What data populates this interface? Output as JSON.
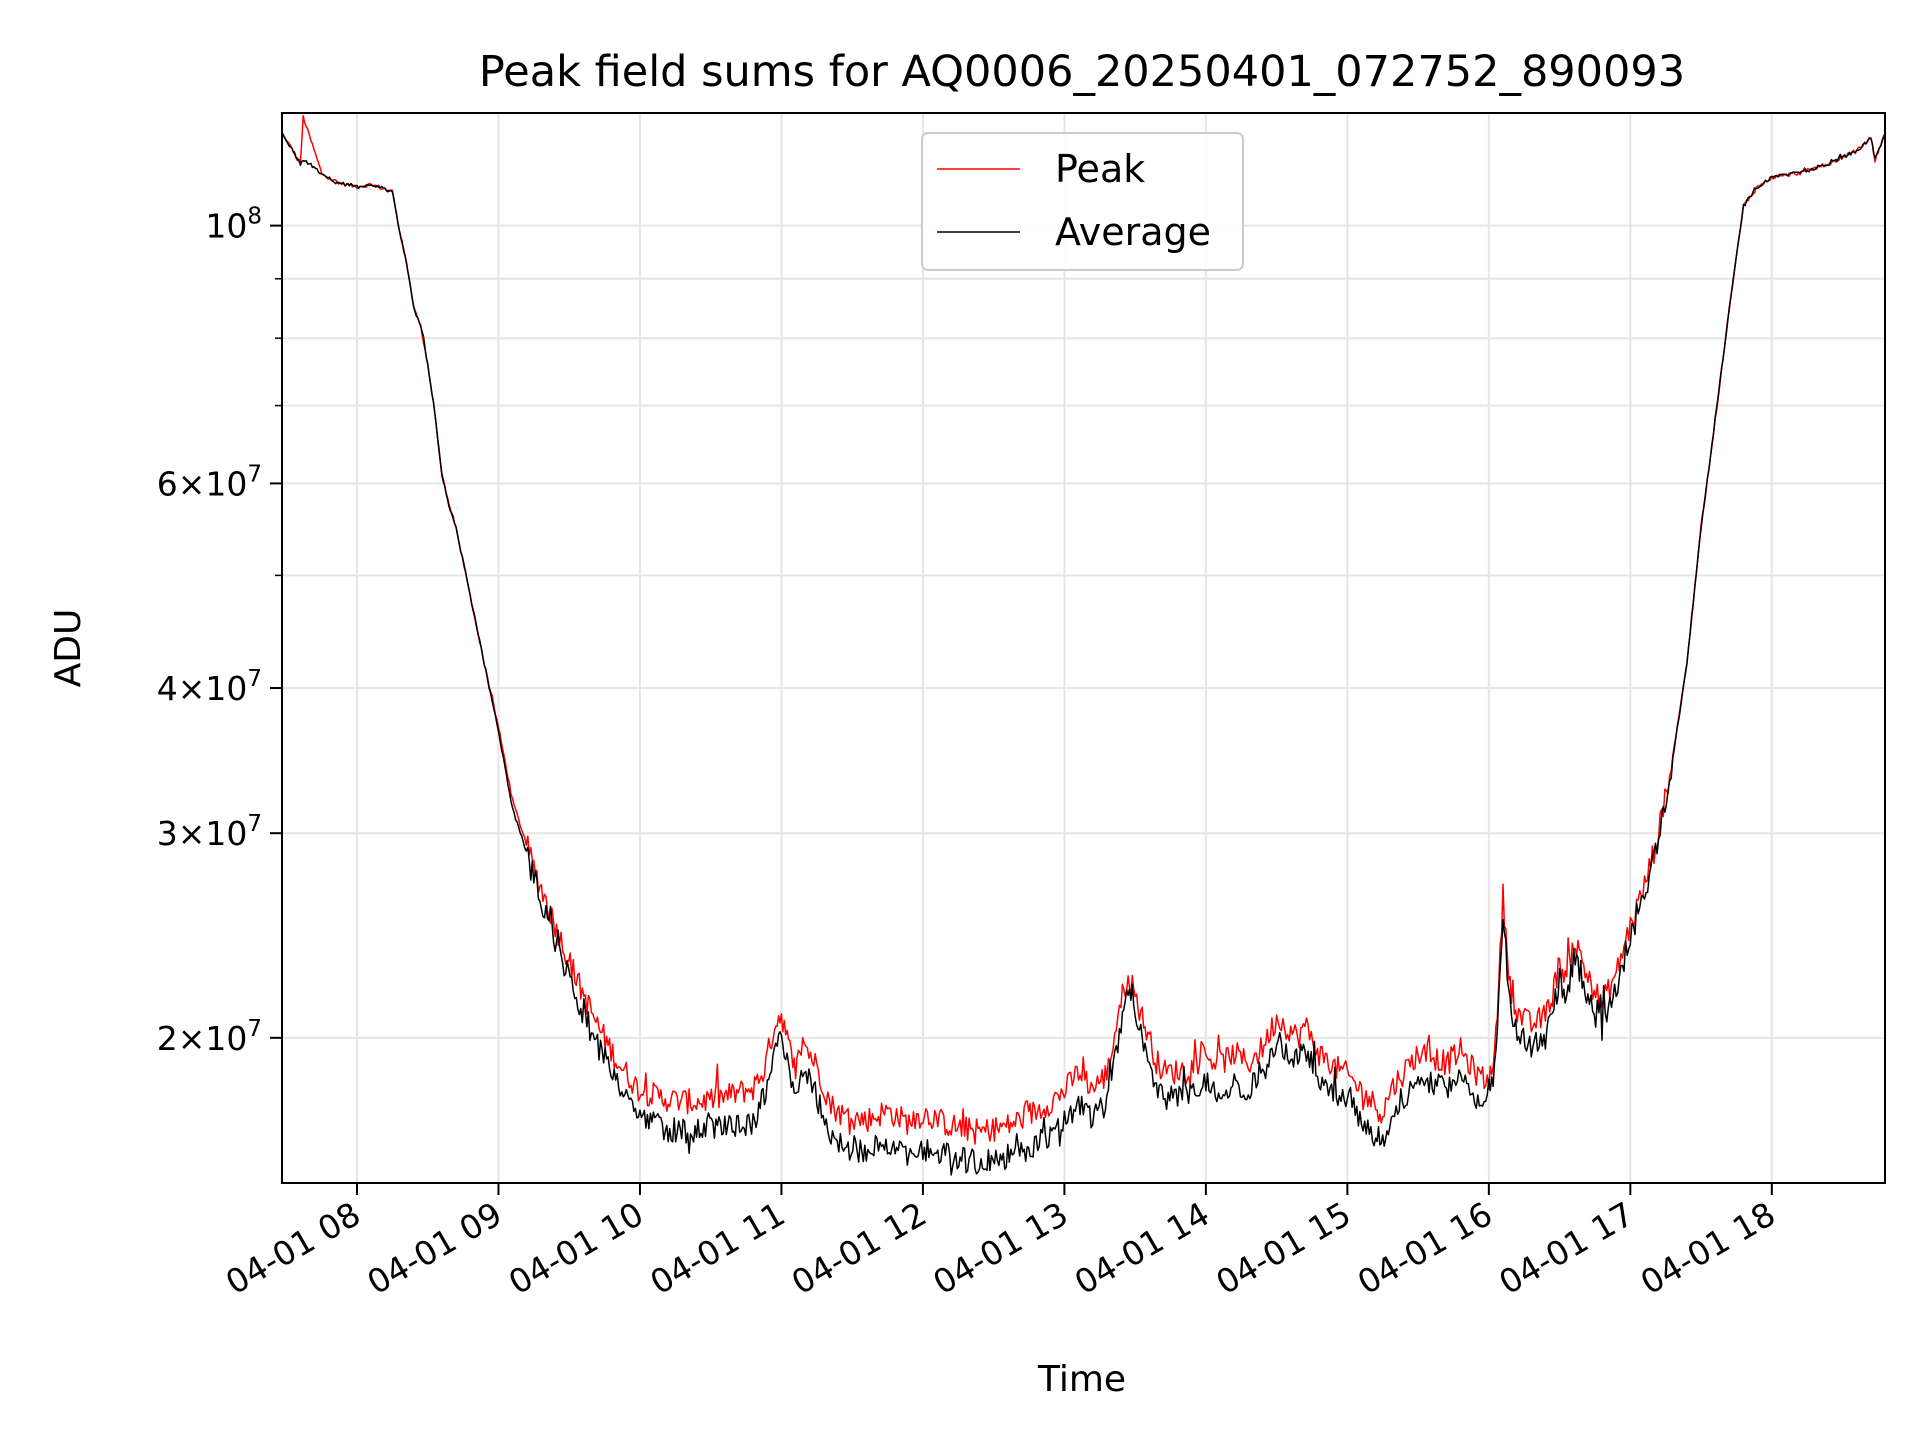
{
  "chart_data": {
    "type": "line",
    "title": "Peak field sums for AQ0006_20250401_072752_890093",
    "xlabel": "Time",
    "ylabel": "ADU",
    "x_unit": "hour of day 2025-04-01",
    "xlim": [
      7.47,
      18.8
    ],
    "ylim": [
      15000000,
      125000000
    ],
    "y_scale": "log",
    "grid": true,
    "legend_position": "top-center",
    "x_ticks": [
      {
        "value": 8,
        "label": "04-01 08"
      },
      {
        "value": 9,
        "label": "04-01 09"
      },
      {
        "value": 10,
        "label": "04-01 10"
      },
      {
        "value": 11,
        "label": "04-01 11"
      },
      {
        "value": 12,
        "label": "04-01 12"
      },
      {
        "value": 13,
        "label": "04-01 13"
      },
      {
        "value": 14,
        "label": "04-01 14"
      },
      {
        "value": 15,
        "label": "04-01 15"
      },
      {
        "value": 16,
        "label": "04-01 16"
      },
      {
        "value": 17,
        "label": "04-01 17"
      },
      {
        "value": 18,
        "label": "04-01 18"
      }
    ],
    "y_ticks": [
      {
        "value": 20000000,
        "mantissa": "2",
        "exponent": "7"
      },
      {
        "value": 30000000,
        "mantissa": "3",
        "exponent": "7"
      },
      {
        "value": 40000000,
        "mantissa": "4",
        "exponent": "7"
      },
      {
        "value": 60000000,
        "mantissa": "6",
        "exponent": "7"
      },
      {
        "value": 100000000,
        "mantissa": "",
        "exponent": "8"
      }
    ],
    "y_minor_ticks": [
      50000000,
      70000000,
      80000000,
      90000000
    ],
    "series": [
      {
        "name": "Peak",
        "color": "#ff0000",
        "x": [
          7.47,
          7.55,
          7.6,
          7.62,
          7.75,
          7.85,
          8.0,
          8.1,
          8.25,
          8.3,
          8.35,
          8.4,
          8.45,
          8.5,
          8.55,
          8.6,
          8.65,
          8.7,
          8.8,
          8.9,
          9.0,
          9.1,
          9.25,
          9.4,
          9.55,
          9.7,
          9.85,
          10.0,
          10.2,
          10.4,
          10.6,
          10.8,
          10.88,
          10.95,
          11.0,
          11.05,
          11.1,
          11.15,
          11.25,
          11.35,
          11.45,
          11.6,
          11.75,
          11.9,
          12.0,
          12.2,
          12.4,
          12.6,
          12.8,
          12.9,
          13.0,
          13.1,
          13.2,
          13.3,
          13.4,
          13.45,
          13.5,
          13.55,
          13.6,
          13.65,
          13.7,
          13.8,
          13.9,
          14.0,
          14.1,
          14.2,
          14.3,
          14.4,
          14.5,
          14.6,
          14.65,
          14.7,
          14.8,
          14.9,
          15.0,
          15.1,
          15.2,
          15.25,
          15.3,
          15.4,
          15.5,
          15.6,
          15.7,
          15.8,
          15.9,
          16.0,
          16.05,
          16.1,
          16.15,
          16.2,
          16.3,
          16.4,
          16.45,
          16.5,
          16.55,
          16.6,
          16.65,
          16.7,
          16.8,
          16.9,
          17.0,
          17.1,
          17.2,
          17.3,
          17.4,
          17.5,
          17.6,
          17.7,
          17.8,
          17.9,
          18.0,
          18.1,
          18.2,
          18.4,
          18.6,
          18.7,
          18.73,
          18.8
        ],
        "y": [
          120000000,
          116000000,
          113000000,
          124000000,
          111000000,
          109000000,
          108000000,
          108500000,
          107000000,
          99000000,
          93000000,
          85000000,
          82000000,
          76000000,
          69000000,
          61000000,
          57500000,
          55000000,
          48000000,
          42000000,
          37000000,
          32000000,
          28000000,
          25000000,
          22500000,
          20500000,
          19000000,
          18000000,
          17700000,
          17600000,
          17800000,
          18100000,
          18800000,
          20500000,
          21000000,
          19700000,
          18700000,
          19900000,
          18900000,
          17500000,
          17100000,
          17000000,
          17300000,
          16900000,
          17200000,
          16800000,
          16600000,
          16800000,
          17300000,
          17600000,
          18000000,
          18700000,
          18100000,
          18600000,
          21500000,
          22700000,
          21800000,
          20800000,
          20000000,
          19100000,
          18700000,
          18700000,
          18900000,
          19300000,
          19000000,
          19400000,
          19000000,
          19600000,
          20800000,
          20300000,
          20000000,
          20500000,
          19400000,
          18900000,
          18600000,
          18000000,
          17500000,
          17200000,
          18000000,
          18700000,
          19400000,
          19300000,
          19000000,
          19500000,
          18700000,
          18300000,
          20000000,
          26500000,
          22200000,
          21000000,
          20500000,
          20900000,
          21800000,
          23200000,
          22500000,
          24200000,
          23500000,
          22500000,
          21400000,
          22700000,
          25000000,
          27000000,
          30000000,
          35000000,
          42000000,
          55000000,
          68000000,
          85000000,
          104000000,
          108000000,
          110000000,
          110500000,
          111000000,
          113000000,
          116000000,
          119000000,
          114000000,
          120000000
        ]
      },
      {
        "name": "Average",
        "color": "#000000",
        "x": [
          7.47,
          7.55,
          7.6,
          7.62,
          7.75,
          7.85,
          8.0,
          8.1,
          8.25,
          8.3,
          8.35,
          8.4,
          8.45,
          8.5,
          8.55,
          8.6,
          8.65,
          8.7,
          8.8,
          8.9,
          9.0,
          9.1,
          9.25,
          9.4,
          9.55,
          9.7,
          9.85,
          10.0,
          10.2,
          10.4,
          10.6,
          10.8,
          10.88,
          10.95,
          11.0,
          11.05,
          11.1,
          11.15,
          11.25,
          11.35,
          11.45,
          11.6,
          11.75,
          11.9,
          12.0,
          12.2,
          12.4,
          12.6,
          12.8,
          12.9,
          13.0,
          13.1,
          13.2,
          13.3,
          13.4,
          13.45,
          13.5,
          13.55,
          13.6,
          13.65,
          13.7,
          13.8,
          13.9,
          14.0,
          14.1,
          14.2,
          14.3,
          14.4,
          14.5,
          14.6,
          14.65,
          14.7,
          14.8,
          14.9,
          15.0,
          15.1,
          15.2,
          15.25,
          15.3,
          15.4,
          15.5,
          15.6,
          15.7,
          15.8,
          15.9,
          16.0,
          16.05,
          16.1,
          16.15,
          16.2,
          16.3,
          16.4,
          16.45,
          16.5,
          16.55,
          16.6,
          16.65,
          16.7,
          16.8,
          16.9,
          17.0,
          17.1,
          17.2,
          17.3,
          17.4,
          17.5,
          17.6,
          17.7,
          17.8,
          17.9,
          18.0,
          18.1,
          18.2,
          18.4,
          18.6,
          18.7,
          18.73,
          18.8
        ],
        "y": [
          120000000,
          116000000,
          113000000,
          114000000,
          111000000,
          109000000,
          108000000,
          108500000,
          107000000,
          99000000,
          93000000,
          85000000,
          82000000,
          76000000,
          69000000,
          61000000,
          57500000,
          55000000,
          48000000,
          42000000,
          36700000,
          31500000,
          27500000,
          24300000,
          21700000,
          19700000,
          18200000,
          17100000,
          16700000,
          16600000,
          16700000,
          16900000,
          17600000,
          19400000,
          20100000,
          18900000,
          17900000,
          18900000,
          17800000,
          16500000,
          16100000,
          16000000,
          16200000,
          15900000,
          16100000,
          15800000,
          15600000,
          15800000,
          16200000,
          16500000,
          16900000,
          17600000,
          17100000,
          17600000,
          20600000,
          21900000,
          20900000,
          19900000,
          19100000,
          18200000,
          17800000,
          17800000,
          17900000,
          18300000,
          18000000,
          18400000,
          18000000,
          18600000,
          19800000,
          19400000,
          19100000,
          19600000,
          18500000,
          18000000,
          17600000,
          17000000,
          16500000,
          16200000,
          17000000,
          17700000,
          18400000,
          18300000,
          18000000,
          18500000,
          17800000,
          17400000,
          19000000,
          25600000,
          21300000,
          20100000,
          19600000,
          20000000,
          21000000,
          22500000,
          21700000,
          23500000,
          22800000,
          21700000,
          20700000,
          22000000,
          24500000,
          26500000,
          29800000,
          34800000,
          42000000,
          55000000,
          68000000,
          85000000,
          104000000,
          108000000,
          110000000,
          110500000,
          111000000,
          113000000,
          116000000,
          119000000,
          114000000,
          120000000
        ]
      }
    ]
  }
}
